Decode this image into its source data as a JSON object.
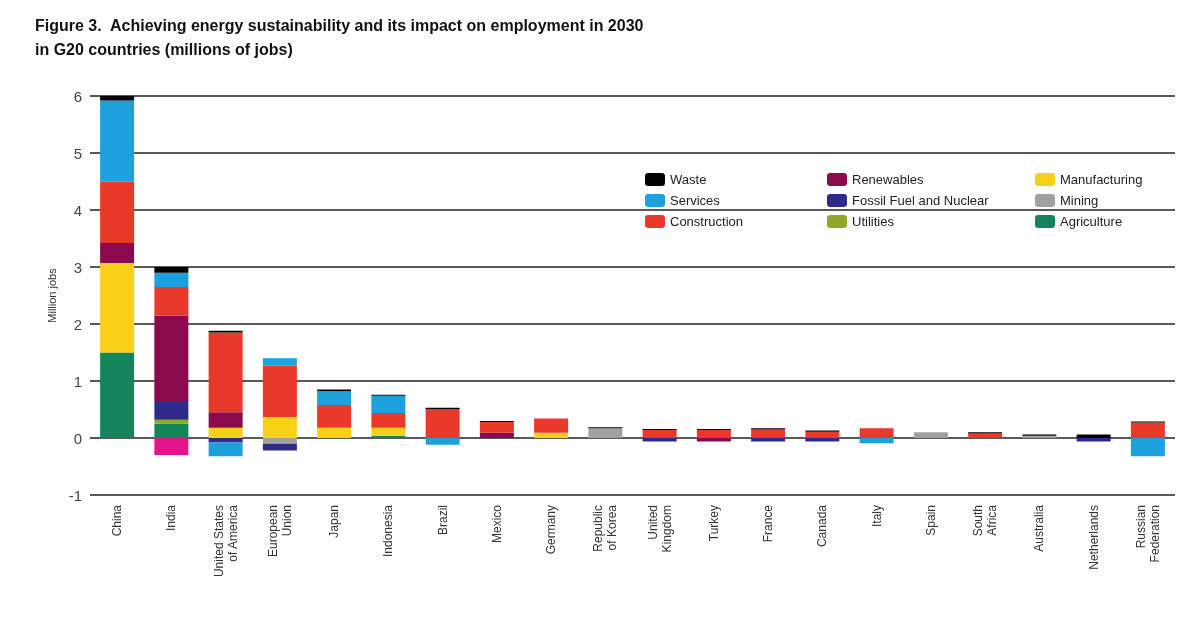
{
  "chart_data": {
    "type": "bar",
    "stacked": true,
    "title": "Figure 3.  Achieving energy sustainability and its impact on employment in 2030\nin G20 countries (millions of jobs)",
    "ylabel": "Million jobs",
    "categories": [
      "China",
      "India",
      "United States\nof America",
      "European\nUnion",
      "Japan",
      "Indonesia",
      "Brazil",
      "Mexico",
      "Germany",
      "Republic\nof Korea",
      "United\nKingdom",
      "Turkey",
      "France",
      "Canada",
      "Italy",
      "Spain",
      "South\nAfrica",
      "Australia",
      "Netherlands",
      "Russian\nFederation"
    ],
    "ylim": [
      -1,
      6
    ],
    "yticks": [
      -1,
      0,
      1,
      2,
      3,
      4,
      5,
      6
    ],
    "grid": "y",
    "legend": "top right",
    "series": [
      {
        "name": "Agriculture",
        "color": "#14855a",
        "values": [
          1.5,
          0.25,
          null,
          null,
          null,
          0.04,
          null,
          null,
          null,
          null,
          null,
          null,
          null,
          null,
          null,
          null,
          null,
          null,
          null,
          null
        ]
      },
      {
        "name": "Mining",
        "color": "#a0a0a0",
        "values": [
          null,
          null,
          null,
          -0.1,
          null,
          null,
          null,
          null,
          null,
          0.17,
          null,
          null,
          null,
          null,
          null,
          0.1,
          null,
          0.04,
          null,
          null
        ]
      },
      {
        "name": "Manufacturing",
        "color": "#f7d117",
        "values": [
          1.57,
          null,
          0.18,
          0.37,
          0.18,
          0.14,
          null,
          null,
          0.09,
          null,
          null,
          null,
          null,
          null,
          null,
          null,
          null,
          null,
          null,
          null
        ]
      },
      {
        "name": "Utilities",
        "color": "#8fa82a",
        "values": [
          null,
          0.07,
          null,
          null,
          null,
          null,
          null,
          null,
          null,
          null,
          null,
          null,
          null,
          null,
          null,
          null,
          null,
          null,
          null,
          null
        ]
      },
      {
        "name": "Fossil Fuel and Nuclear",
        "color": "#2e2a8a",
        "values": [
          null,
          0.33,
          -0.08,
          -0.12,
          null,
          null,
          null,
          null,
          null,
          null,
          -0.06,
          null,
          -0.06,
          -0.06,
          null,
          null,
          null,
          null,
          -0.06,
          null
        ]
      },
      {
        "name": "Renewables",
        "color": "#8b0a4e",
        "values": [
          0.35,
          1.5,
          0.27,
          null,
          null,
          null,
          null,
          0.09,
          null,
          null,
          null,
          -0.06,
          null,
          null,
          null,
          null,
          null,
          null,
          null,
          null
        ]
      },
      {
        "name": "Construction",
        "color": "#e8392a",
        "values": [
          1.08,
          0.5,
          1.4,
          0.9,
          0.4,
          0.26,
          0.51,
          0.19,
          0.25,
          null,
          0.14,
          0.14,
          0.15,
          0.11,
          0.17,
          null,
          0.08,
          null,
          null,
          0.27
        ]
      },
      {
        "name": "Services",
        "color": "#1ea0dc",
        "values": [
          1.42,
          0.25,
          -0.24,
          0.13,
          0.24,
          0.3,
          -0.12,
          null,
          null,
          null,
          null,
          null,
          null,
          null,
          -0.09,
          null,
          null,
          null,
          null,
          -0.32
        ]
      },
      {
        "name": "Waste",
        "color": "#000000",
        "values": [
          0.08,
          0.1,
          0.03,
          null,
          0.03,
          0.02,
          0.02,
          0.02,
          null,
          0.02,
          0.02,
          0.02,
          0.02,
          0.02,
          null,
          null,
          0.02,
          0.02,
          0.06,
          0.02
        ]
      },
      {
        "color": "#e4148c",
        "values": [
          null,
          -0.3,
          null,
          null,
          null,
          null,
          null,
          null,
          null,
          null,
          null,
          null,
          null,
          null,
          null,
          null,
          null,
          null,
          null,
          null
        ]
      }
    ]
  }
}
